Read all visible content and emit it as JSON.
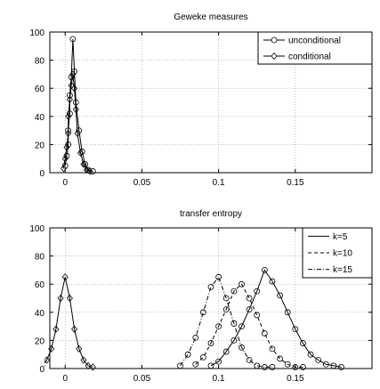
{
  "chart_data": [
    {
      "type": "line",
      "title": "Geweke measures",
      "xlabel": "",
      "ylabel": "",
      "xlim": [
        -0.01,
        0.2
      ],
      "ylim": [
        0,
        100
      ],
      "xticks": [
        0,
        0.05,
        0.1,
        0.15
      ],
      "xtick_labels": [
        "0",
        "0.05",
        "0.1",
        "0.15"
      ],
      "yticks": [
        0,
        20,
        40,
        60,
        80,
        100
      ],
      "ytick_labels": [
        "0",
        "20",
        "40",
        "60",
        "80",
        "100"
      ],
      "grid": true,
      "legend_position": "top-right",
      "series": [
        {
          "name": "unconditional",
          "marker": "circle",
          "x": [
            0.0,
            0.001,
            0.002,
            0.002,
            0.003,
            0.003,
            0.004,
            0.005,
            0.006,
            0.007,
            0.009,
            0.011,
            0.013,
            0.015,
            0.018
          ],
          "y": [
            5,
            12,
            20,
            30,
            42,
            55,
            68,
            95,
            72,
            50,
            30,
            15,
            6,
            2,
            1
          ]
        },
        {
          "name": "conditional",
          "marker": "diamond",
          "x": [
            -0.001,
            0.0,
            0.001,
            0.002,
            0.002,
            0.003,
            0.004,
            0.005,
            0.006,
            0.007,
            0.008,
            0.01,
            0.012,
            0.014,
            0.016
          ],
          "y": [
            3,
            10,
            18,
            28,
            40,
            52,
            62,
            70,
            60,
            45,
            28,
            14,
            6,
            2,
            1
          ]
        }
      ]
    },
    {
      "type": "line",
      "title": "transfer entropy",
      "xlabel": "",
      "ylabel": "",
      "xlim": [
        -0.01,
        0.2
      ],
      "ylim": [
        0,
        100
      ],
      "xticks": [
        0,
        0.05,
        0.1,
        0.15
      ],
      "xtick_labels": [
        "0",
        "0.05",
        "0.1",
        "0.15"
      ],
      "yticks": [
        0,
        20,
        40,
        60,
        80,
        100
      ],
      "ytick_labels": [
        "0",
        "20",
        "40",
        "60",
        "80",
        "100"
      ],
      "grid": true,
      "legend_position": "top-right",
      "series": [
        {
          "name": "k=5",
          "marker": "circle",
          "line_style": "solid",
          "x": [
            0.095,
            0.1,
            0.105,
            0.11,
            0.115,
            0.12,
            0.125,
            0.13,
            0.135,
            0.14,
            0.145,
            0.15,
            0.155,
            0.16,
            0.165,
            0.17,
            0.175,
            0.18
          ],
          "y": [
            2,
            5,
            12,
            20,
            30,
            42,
            55,
            70,
            62,
            52,
            40,
            28,
            18,
            10,
            6,
            3,
            2,
            1
          ]
        },
        {
          "name": "k=10",
          "marker": "circle",
          "line_style": "dashed",
          "x": [
            0.085,
            0.09,
            0.095,
            0.1,
            0.105,
            0.11,
            0.115,
            0.12,
            0.125,
            0.13,
            0.135,
            0.14,
            0.145,
            0.15,
            0.155
          ],
          "y": [
            3,
            8,
            18,
            30,
            42,
            55,
            60,
            50,
            38,
            25,
            14,
            7,
            3,
            1,
            1
          ]
        },
        {
          "name": "k=15",
          "marker": "circle",
          "line_style": "dashdot",
          "x": [
            0.075,
            0.08,
            0.085,
            0.09,
            0.095,
            0.1,
            0.105,
            0.11,
            0.115,
            0.12,
            0.125,
            0.13,
            0.135
          ],
          "y": [
            2,
            10,
            22,
            40,
            58,
            65,
            50,
            32,
            15,
            6,
            2,
            1,
            1
          ]
        },
        {
          "name": "",
          "marker": "diamond",
          "line_style": "solid",
          "x": [
            -0.015,
            -0.012,
            -0.009,
            -0.006,
            -0.003,
            0.0,
            0.003,
            0.006,
            0.009,
            0.012,
            0.015,
            0.018
          ],
          "y": [
            2,
            6,
            14,
            28,
            50,
            65,
            50,
            28,
            14,
            6,
            2,
            1
          ]
        }
      ]
    }
  ]
}
